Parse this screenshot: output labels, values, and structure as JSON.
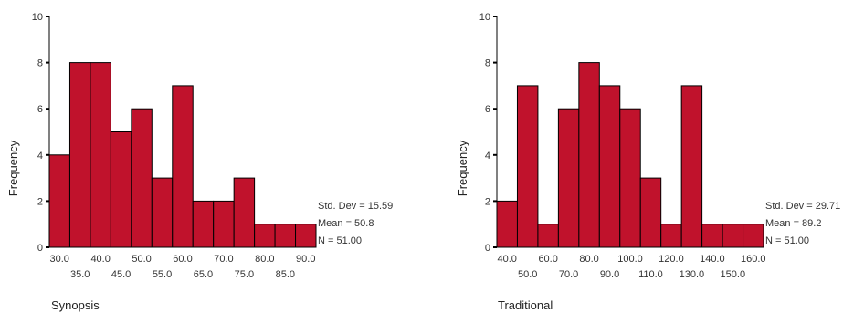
{
  "chart_data": [
    {
      "type": "bar",
      "title": "",
      "xlabel": "Synopsis",
      "ylabel": "Frequency",
      "ylim": [
        0,
        10
      ],
      "y_ticks": [
        "0",
        "2",
        "4",
        "6",
        "8",
        "10"
      ],
      "bin_width": 5.0,
      "bin_centers": [
        30,
        35,
        40,
        45,
        50,
        55,
        60,
        65,
        70,
        75,
        80,
        85,
        90
      ],
      "values": [
        4,
        8,
        8,
        5,
        6,
        3,
        7,
        2,
        2,
        3,
        1,
        1,
        1
      ],
      "x_tick_labels": [
        "30.0",
        "35.0",
        "40.0",
        "45.0",
        "50.0",
        "55.0",
        "60.0",
        "65.0",
        "70.0",
        "75.0",
        "80.0",
        "85.0",
        "90.0"
      ],
      "stats": [
        "Std. Dev = 15.59",
        "Mean = 50.8",
        "N = 51.00"
      ],
      "bar_color": "#C0122C"
    },
    {
      "type": "bar",
      "title": "",
      "xlabel": "Traditional",
      "ylabel": "Frequency",
      "ylim": [
        0,
        10
      ],
      "y_ticks": [
        "0",
        "2",
        "4",
        "6",
        "8",
        "10"
      ],
      "bin_width": 10.0,
      "bin_centers": [
        40,
        50,
        60,
        70,
        80,
        90,
        100,
        110,
        120,
        130,
        140,
        150,
        160
      ],
      "values": [
        2,
        7,
        1,
        6,
        8,
        7,
        6,
        3,
        1,
        7,
        1,
        1,
        1
      ],
      "x_tick_labels": [
        "40.0",
        "50.0",
        "60.0",
        "70.0",
        "80.0",
        "90.0",
        "100.0",
        "110.0",
        "120.0",
        "130.0",
        "140.0",
        "150.0",
        "160.0"
      ],
      "stats": [
        "Std. Dev = 29.71",
        "Mean = 89.2",
        "N = 51.00"
      ],
      "bar_color": "#C0122C"
    }
  ]
}
